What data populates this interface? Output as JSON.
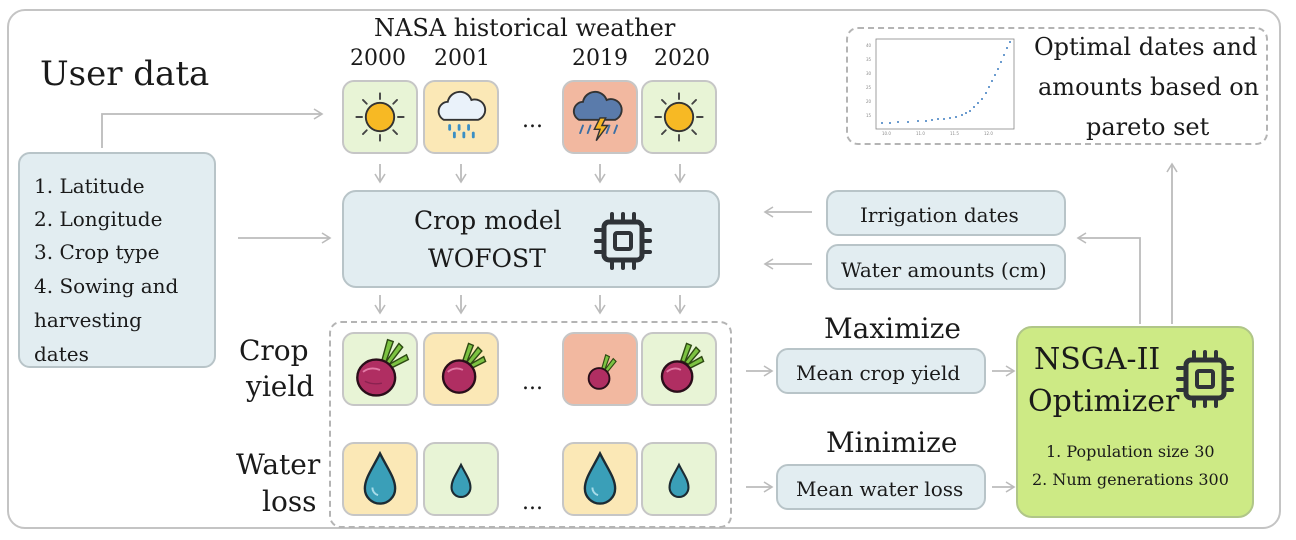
{
  "user_data": {
    "title": "User data",
    "items": [
      "1. Latitude",
      "2. Longitude",
      "3. Crop type",
      "4. Sowing and",
      "harvesting",
      "dates"
    ]
  },
  "weather": {
    "title": "NASA historical weather",
    "years": [
      "2000",
      "2001",
      "2019",
      "2020"
    ],
    "icons": [
      "sun-icon",
      "rain-cloud-icon",
      "storm-cloud-icon",
      "sun-icon"
    ],
    "ellipsis": "..."
  },
  "crop_model": {
    "line1": "Crop model",
    "line2": "WOFOST",
    "icon": "chip-icon"
  },
  "inputs": {
    "irrigation": "Irrigation dates",
    "water": "Water amounts (cm)"
  },
  "outcome": {
    "line1": "Optimal dates and",
    "line2": "amounts based on",
    "line3": "pareto set"
  },
  "rows": {
    "crop_label_1": "Crop",
    "crop_label_2": "yield",
    "water_label_1": "Water",
    "water_label_2": "loss",
    "ellipsis": "..."
  },
  "objectives": {
    "maximize": "Maximize",
    "mean_yield": "Mean crop yield",
    "minimize": "Minimize",
    "mean_water": "Mean water loss"
  },
  "optimizer": {
    "line1": "NSGA-II",
    "line2": "Optimizer",
    "param1": "1. Population size 30",
    "param2": "2. Num generations 300",
    "icon": "chip-icon"
  },
  "colors": {
    "tile_green": "#e8f4d6",
    "tile_yellow": "#fbe8b6",
    "tile_red": "#f2b8a0",
    "model_box": "#e2edf1",
    "optimizer_box": "#cdea85"
  }
}
